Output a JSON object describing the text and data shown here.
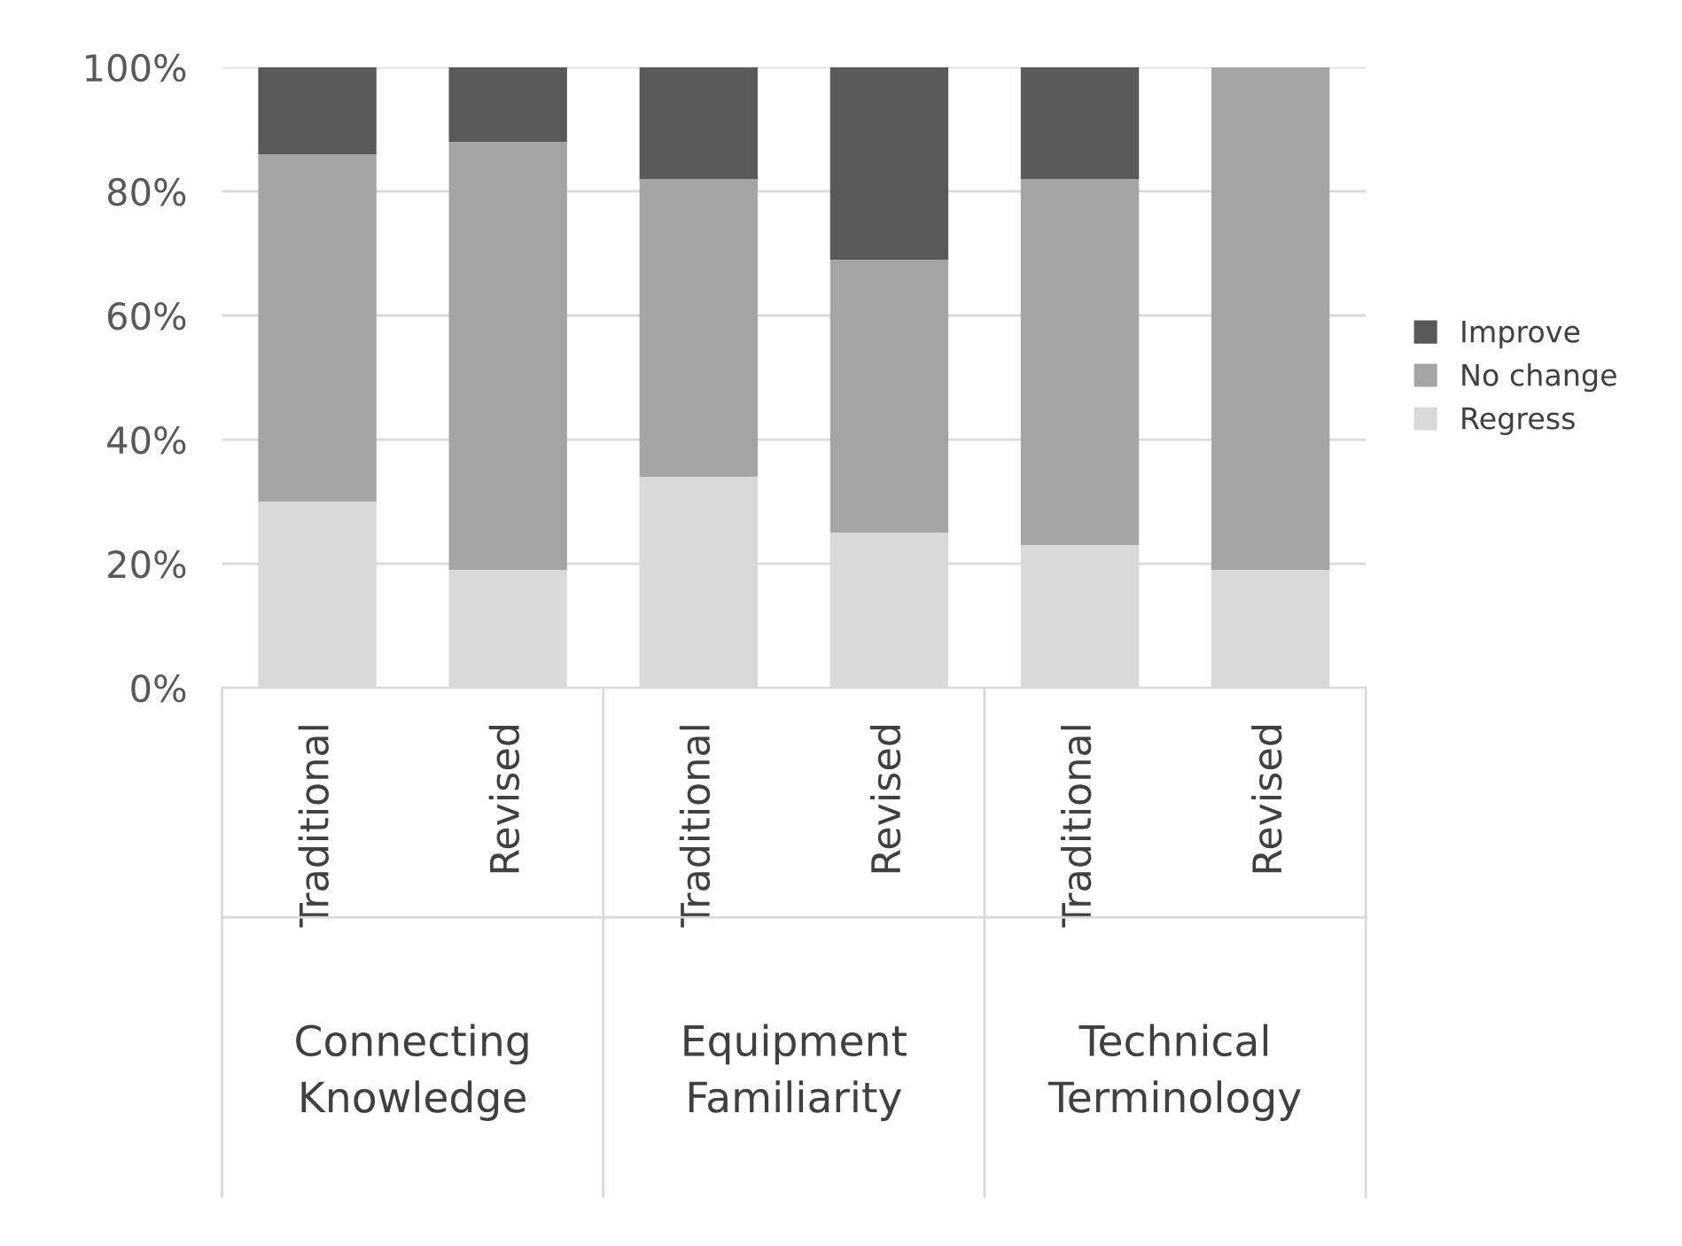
{
  "chart_data": {
    "type": "bar",
    "stacked": true,
    "categories": [
      "Traditional",
      "Revised",
      "Traditional",
      "Revised",
      "Traditional",
      "Revised"
    ],
    "series": [
      {
        "name": "Regress",
        "color": "#d9d9d9",
        "values": [
          30,
          19,
          34,
          25,
          23,
          19
        ]
      },
      {
        "name": "No change",
        "color": "#a5a5a5",
        "values": [
          56,
          69,
          48,
          44,
          59,
          81
        ]
      },
      {
        "name": "Improve",
        "color": "#595959",
        "values": [
          14,
          12,
          18,
          31,
          18,
          0
        ]
      }
    ],
    "annotations": [
      "Connecting\nKnowledge",
      "Equipment\nFamiliarity",
      "Technical\nTerminology"
    ],
    "ylim": [
      0,
      100
    ],
    "yticks": [
      {
        "value": 0,
        "label": "0%"
      },
      {
        "value": 20,
        "label": "20%"
      },
      {
        "value": 40,
        "label": "40%"
      },
      {
        "value": 60,
        "label": "60%"
      },
      {
        "value": 80,
        "label": "80%"
      },
      {
        "value": 100,
        "label": "100%"
      }
    ],
    "grid": "y",
    "legend": "right"
  }
}
